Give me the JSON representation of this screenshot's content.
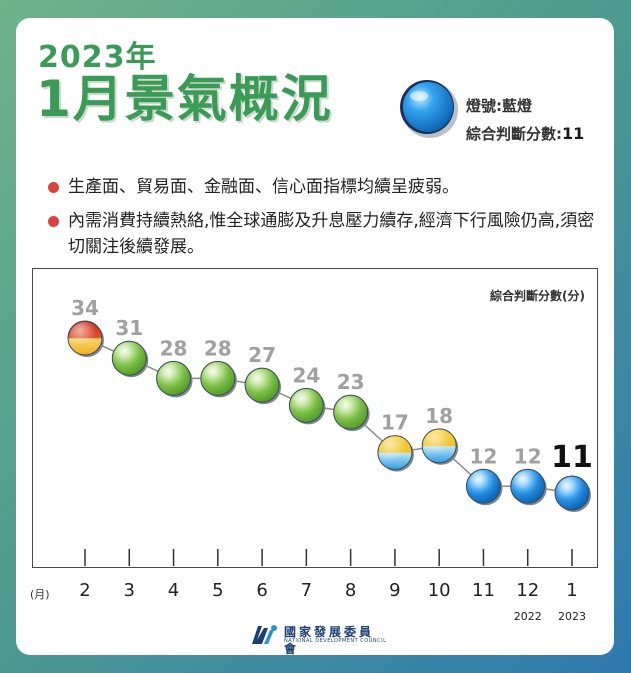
{
  "header": {
    "year": "2023年",
    "title": "1月景氣概況",
    "signal_label": "燈號:藍燈",
    "score_label": "綜合判斷分數:",
    "score_value": "11"
  },
  "bullets": [
    "生產面、貿易面、金融面、信心面指標均續呈疲弱。",
    "內需消費持續熱絡,惟全球通膨及升息壓力續存,經濟下行風險仍高,須密切關注後續發展。"
  ],
  "chart_data": {
    "type": "line",
    "title": "",
    "ylabel": "綜合判斷分數(分)",
    "xlabel": "(月)",
    "categories": [
      "2",
      "3",
      "4",
      "5",
      "6",
      "7",
      "8",
      "9",
      "10",
      "11",
      "12",
      "1"
    ],
    "values": [
      34,
      31,
      28,
      28,
      27,
      24,
      23,
      17,
      18,
      12,
      12,
      11
    ],
    "signals": [
      "yellow-red",
      "green",
      "green",
      "green",
      "green",
      "green",
      "green",
      "yellow-blue",
      "yellow-blue",
      "blue",
      "blue",
      "blue"
    ],
    "year_labels": [
      {
        "category": "12",
        "label": "2022"
      },
      {
        "category": "1",
        "label": "2023"
      }
    ],
    "ylim": [
      5,
      40
    ],
    "colors": {
      "green": "#7cc04a",
      "blue": "#1f8fe0",
      "yellow": "#f3c22b",
      "red": "#d9422b",
      "label": "#a0a0a0",
      "highlight_label": "#111111"
    }
  },
  "footer": {
    "org_cn": "國家發展委員會",
    "org_en": "NATIONAL DEVELOPMENT COUNCIL"
  }
}
